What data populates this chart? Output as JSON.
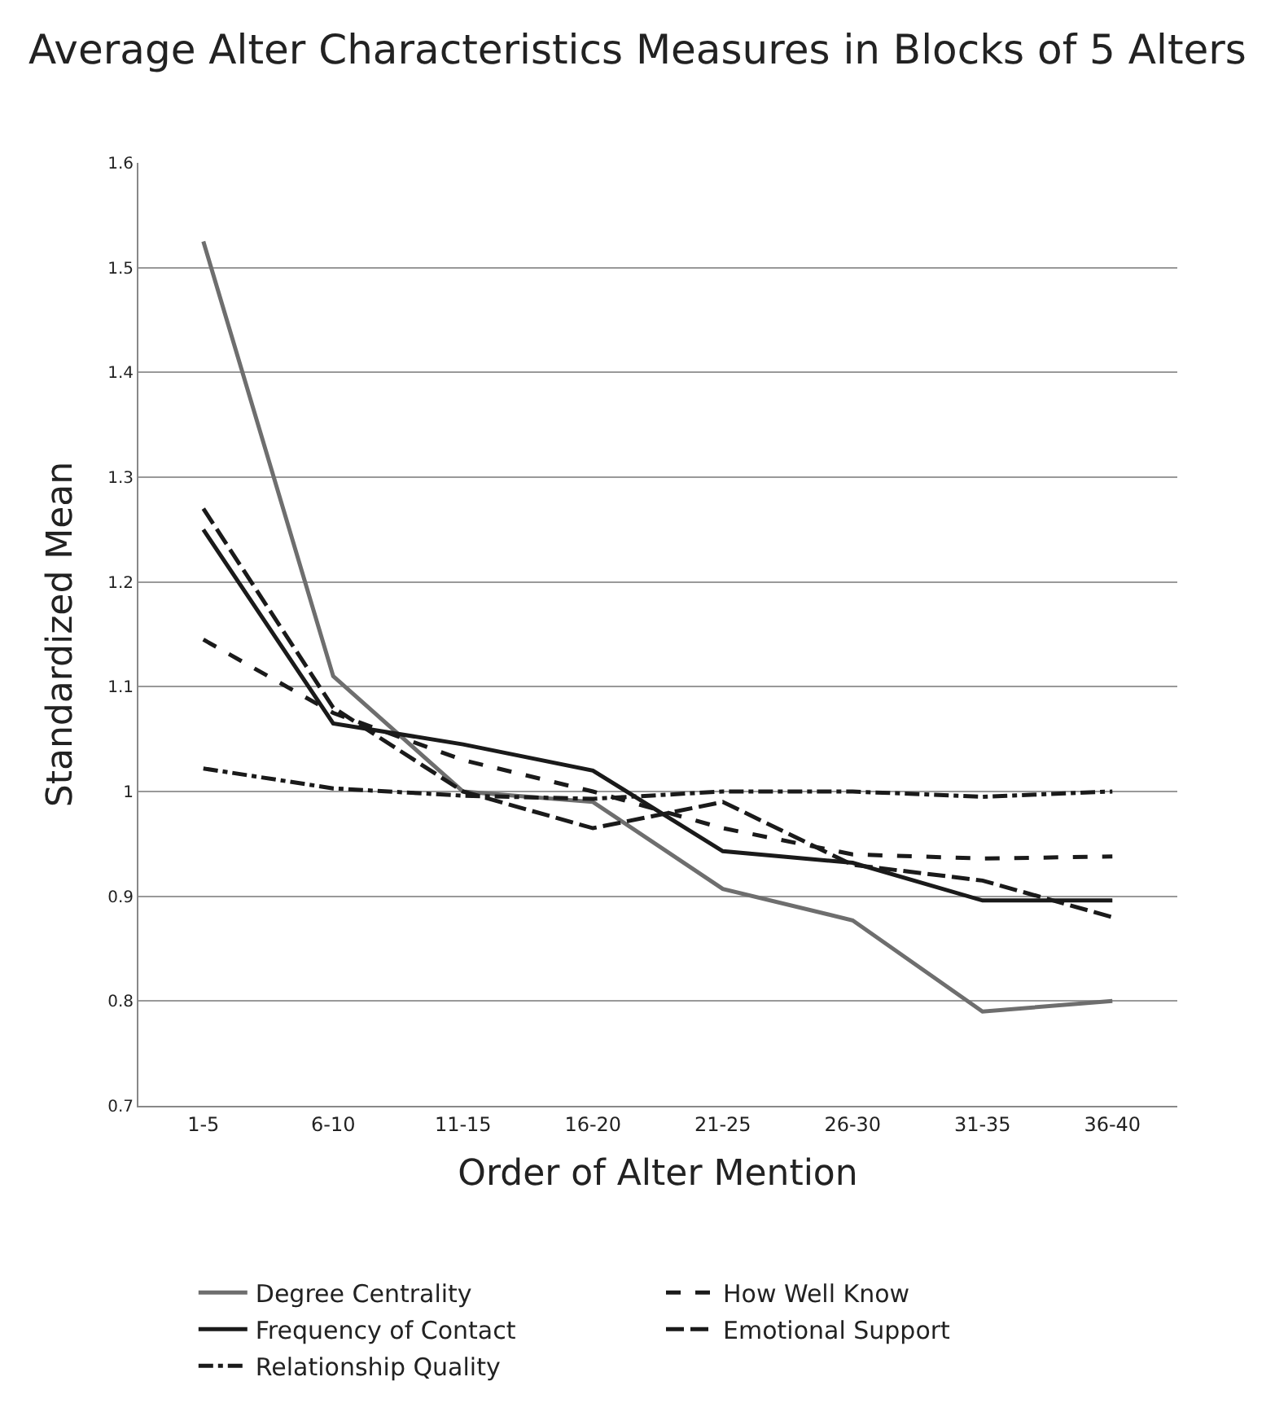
{
  "chart_data": {
    "type": "line",
    "title": "Average Alter Characteristics Measures in Blocks of 5 Alters",
    "xlabel": "Order of Alter Mention",
    "ylabel": "Standardized Mean",
    "categories": [
      "1-5",
      "6-10",
      "11-15",
      "16-20",
      "21-25",
      "26-30",
      "31-35",
      "36-40"
    ],
    "ylim": [
      0.7,
      1.6
    ],
    "yticks": [
      0.7,
      0.8,
      0.9,
      1,
      1.1,
      1.2,
      1.3,
      1.4,
      1.5,
      1.6
    ],
    "grid": "y",
    "legend": "bottom",
    "marker": "none",
    "series": [
      {
        "name": "Degree Centrality",
        "color": "#6e6e6e",
        "line_style": "solid",
        "values": [
          1.525,
          1.11,
          1.0,
          0.99,
          0.907,
          0.877,
          0.79,
          0.8
        ]
      },
      {
        "name": "How Well Know",
        "color": "#1a1a1a",
        "line_style": "dashed",
        "values": [
          1.145,
          1.075,
          1.03,
          1.0,
          0.965,
          0.94,
          0.936,
          0.938
        ]
      },
      {
        "name": "Frequency of Contact",
        "color": "#1a1a1a",
        "line_style": "solid",
        "values": [
          1.25,
          1.065,
          1.045,
          1.02,
          0.943,
          0.932,
          0.896,
          0.896
        ]
      },
      {
        "name": "Emotional Support",
        "color": "#1a1a1a",
        "line_style": "longdashed",
        "values": [
          1.27,
          1.08,
          1.0,
          0.965,
          0.99,
          0.93,
          0.915,
          0.88
        ]
      },
      {
        "name": "Relationship Quality",
        "color": "#1a1a1a",
        "line_style": "dashdot",
        "values": [
          1.022,
          1.003,
          0.996,
          0.993,
          1.0,
          1.0,
          0.995,
          1.0
        ]
      }
    ]
  }
}
